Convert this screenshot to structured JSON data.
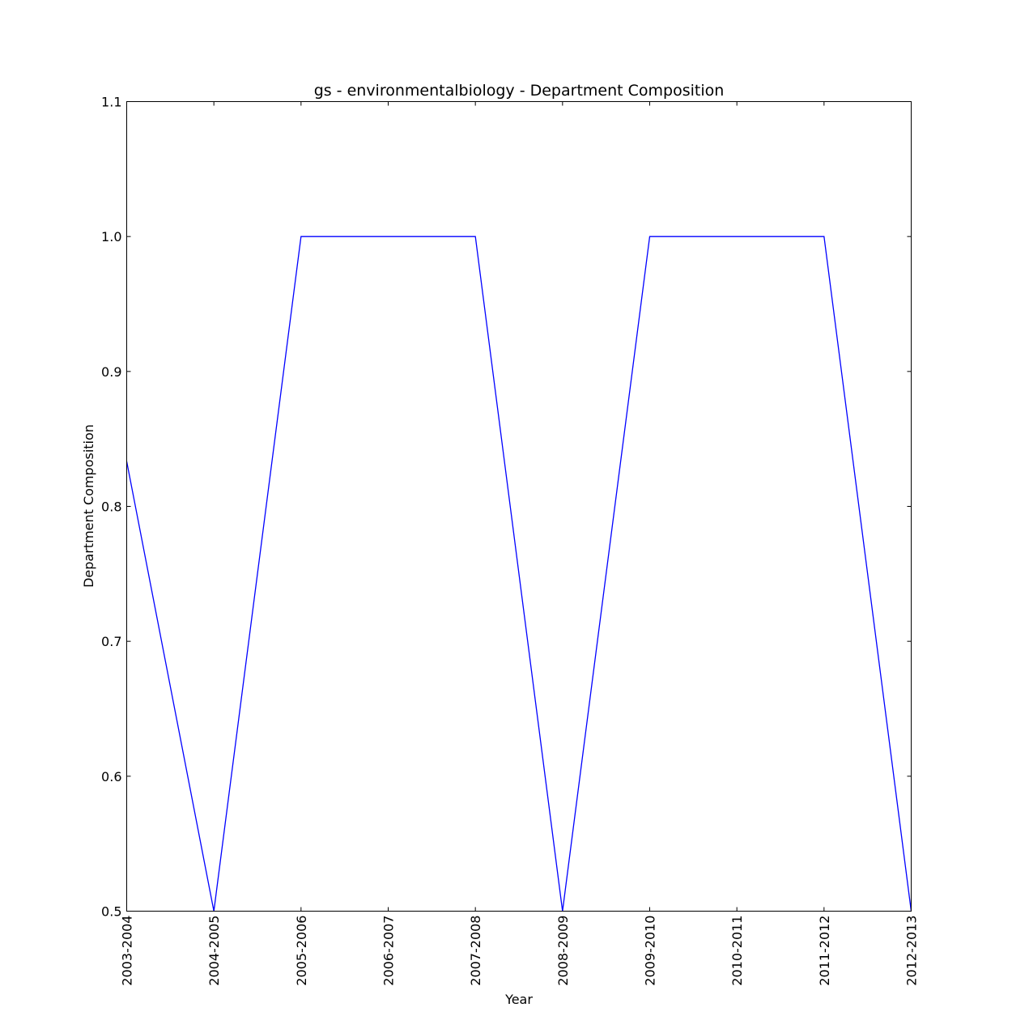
{
  "chart_data": {
    "type": "line",
    "title": "gs - environmentalbiology - Department Composition",
    "xlabel": "Year",
    "ylabel": "Department Composition",
    "categories": [
      "2003-2004",
      "2004-2005",
      "2005-2006",
      "2006-2007",
      "2007-2008",
      "2008-2009",
      "2009-2010",
      "2010-2011",
      "2011-2012",
      "2012-2013"
    ],
    "series": [
      {
        "values": [
          0.8333,
          0.5,
          1.0,
          1.0,
          1.0,
          0.5,
          1.0,
          1.0,
          1.0,
          0.5
        ]
      }
    ],
    "ylim": [
      0.5,
      1.1
    ],
    "yticks": [
      "0.5",
      "0.6",
      "0.7",
      "0.8",
      "0.9",
      "1.0",
      "1.1"
    ],
    "grid": false,
    "colors": {
      "line": "#0000ff",
      "axes": "#000000",
      "background": "#ffffff"
    }
  }
}
